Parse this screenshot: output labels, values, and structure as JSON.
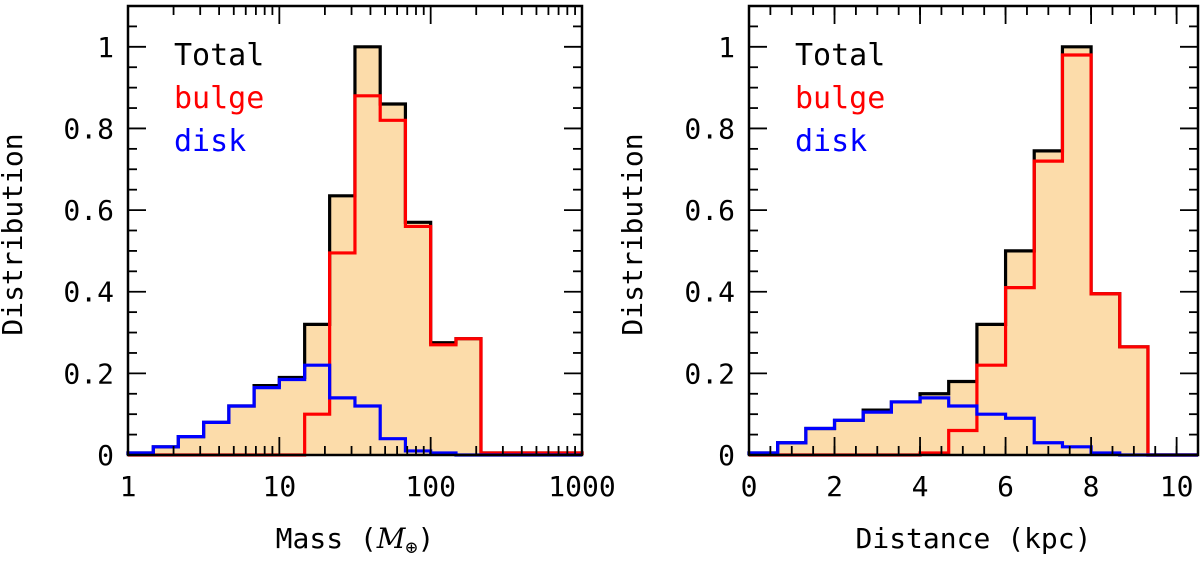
{
  "chart_data": [
    {
      "type": "histogram",
      "xscale": "log",
      "xlabel": "Mass (",
      "xlabel_symbol": "M",
      "xlabel_sub": "⊕",
      "xlabel_close": ")",
      "ylabel": "Distribution",
      "xlim": [
        1,
        1000
      ],
      "ylim": [
        0,
        1.1
      ],
      "xticks": [
        1,
        10,
        100,
        1000
      ],
      "xtick_labels": [
        "1",
        "10",
        "100",
        "1000"
      ],
      "yticks": [
        0,
        0.2,
        0.4,
        0.6,
        0.8,
        1
      ],
      "ytick_labels": [
        "0",
        "0.2",
        "0.4",
        "0.6",
        "0.8",
        "1"
      ],
      "bin_edges": [
        1,
        1.47,
        2.15,
        3.16,
        4.64,
        6.81,
        10,
        14.7,
        21.5,
        31.6,
        46.4,
        68.1,
        100,
        147,
        215,
        316,
        464,
        681,
        1000
      ],
      "legend_position": "top-left",
      "series": [
        {
          "name": "Total",
          "color": "#000000",
          "fill": "#fcdcaa",
          "values": [
            0.005,
            0.02,
            0.045,
            0.08,
            0.12,
            0.17,
            0.19,
            0.32,
            0.635,
            1.0,
            0.86,
            0.57,
            0.275,
            0.285,
            0.005,
            0.005,
            0.005,
            0.005
          ]
        },
        {
          "name": "bulge",
          "color": "#ff0000",
          "values": [
            0,
            0,
            0,
            0,
            0,
            0,
            0,
            0.1,
            0.495,
            0.88,
            0.82,
            0.56,
            0.27,
            0.285,
            0.005,
            0.005,
            0.005,
            0.005
          ]
        },
        {
          "name": "disk",
          "color": "#0000ff",
          "values": [
            0.005,
            0.02,
            0.045,
            0.08,
            0.12,
            0.165,
            0.185,
            0.22,
            0.14,
            0.12,
            0.04,
            0.01,
            0.005,
            0,
            0,
            0,
            0,
            0
          ]
        }
      ]
    },
    {
      "type": "histogram",
      "xscale": "linear",
      "xlabel": "Distance (kpc)",
      "ylabel": "Distribution",
      "xlim": [
        0,
        10.5
      ],
      "ylim": [
        0,
        1.1
      ],
      "xticks": [
        0,
        2,
        4,
        6,
        8,
        10
      ],
      "xtick_labels": [
        "0",
        "2",
        "4",
        "6",
        "8",
        "10"
      ],
      "yticks": [
        0,
        0.2,
        0.4,
        0.6,
        0.8,
        1
      ],
      "ytick_labels": [
        "0",
        "0.2",
        "0.4",
        "0.6",
        "0.8",
        "1"
      ],
      "bin_edges": [
        0,
        0.67,
        1.33,
        2.0,
        2.67,
        3.33,
        4.0,
        4.67,
        5.33,
        6.0,
        6.67,
        7.33,
        8.0,
        8.67,
        9.33,
        10.0,
        10.5
      ],
      "legend_position": "top-left",
      "series": [
        {
          "name": "Total",
          "color": "#000000",
          "fill": "#fcdcaa",
          "values": [
            0.005,
            0.03,
            0.065,
            0.085,
            0.11,
            0.13,
            0.15,
            0.18,
            0.32,
            0.5,
            0.745,
            1.0,
            0.395,
            0.265,
            0,
            0
          ]
        },
        {
          "name": "bulge",
          "color": "#ff0000",
          "values": [
            0,
            0,
            0,
            0,
            0,
            0,
            0.005,
            0.06,
            0.22,
            0.41,
            0.72,
            0.98,
            0.395,
            0.265,
            0,
            0
          ]
        },
        {
          "name": "disk",
          "color": "#0000ff",
          "values": [
            0.005,
            0.03,
            0.065,
            0.085,
            0.105,
            0.13,
            0.14,
            0.12,
            0.1,
            0.09,
            0.03,
            0.02,
            0.005,
            0,
            0,
            0
          ]
        }
      ]
    }
  ]
}
